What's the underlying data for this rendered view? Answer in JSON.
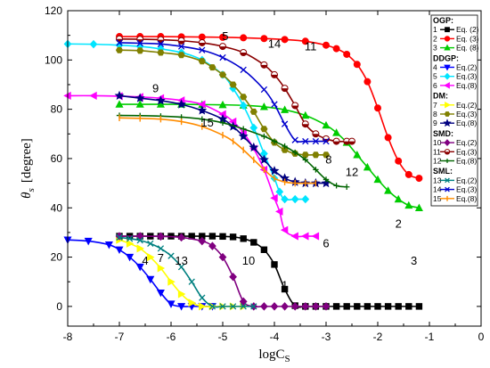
{
  "chart_data": {
    "type": "line",
    "xlabel": "logC",
    "xlabel_sub": "S",
    "ylabel": "θ",
    "ylabel_sub": "s",
    "ylabel_unit": "[degree]",
    "xlim": [
      -8,
      0
    ],
    "ylim": [
      -8,
      120
    ],
    "x_ticks": [
      -8,
      -7,
      -6,
      -5,
      -4,
      -3,
      -2,
      -1,
      0
    ],
    "y_ticks": [
      0,
      20,
      40,
      60,
      80,
      100,
      120
    ],
    "grid": false,
    "legend_position": "right",
    "legend_groups": [
      {
        "title": "OGP:",
        "entries": [
          {
            "num": "1",
            "label": "Eq. (2)",
            "color": "#000000",
            "marker": "square"
          },
          {
            "num": "2",
            "label": "Eq. (3)",
            "color": "#ff0000",
            "marker": "circle"
          },
          {
            "num": "3",
            "label": "Eq. (8)",
            "color": "#00cc00",
            "marker": "triangle-up"
          }
        ]
      },
      {
        "title": "DDGP:",
        "entries": [
          {
            "num": "4",
            "label": "Eq.(2)",
            "color": "#0000ff",
            "marker": "triangle-down"
          },
          {
            "num": "5",
            "label": "Eq.(3)",
            "color": "#00e5ff",
            "marker": "diamond"
          },
          {
            "num": "6",
            "label": "Eq.(8)",
            "color": "#ff00ff",
            "marker": "triangle-left"
          }
        ]
      },
      {
        "title": "DM:",
        "entries": [
          {
            "num": "7",
            "label": "Eq.(2)",
            "color": "#ffff00",
            "marker": "triangle-right"
          },
          {
            "num": "8",
            "label": "Eq.(3)",
            "color": "#808000",
            "marker": "hexagon"
          },
          {
            "num": "9",
            "label": "Eq.(8)",
            "color": "#000080",
            "marker": "star"
          }
        ]
      },
      {
        "title": "SMD:",
        "entries": [
          {
            "num": "10",
            "label": "Eq.(2)",
            "color": "#800080",
            "marker": "diamond"
          },
          {
            "num": "11",
            "label": "Eq.(3)",
            "color": "#8b0000",
            "marker": "circle-half"
          },
          {
            "num": "12",
            "label": "Eq.(8)",
            "color": "#006400",
            "marker": "plus"
          }
        ]
      },
      {
        "title": "SML:",
        "entries": [
          {
            "num": "13",
            "label": "Eq.(2)",
            "color": "#008080",
            "marker": "x"
          },
          {
            "num": "14",
            "label": "Eq.(3)",
            "color": "#0000cd",
            "marker": "x"
          },
          {
            "num": "15",
            "label": "Eq.(8)",
            "color": "#ff8c00",
            "marker": "bar"
          }
        ]
      }
    ],
    "series": [
      {
        "num": "1",
        "label_pos": [
          -3.8,
          7
        ],
        "color": "#000000",
        "marker": "square",
        "x": [
          -7.0,
          -6.8,
          -6.6,
          -6.4,
          -6.2,
          -6.0,
          -5.8,
          -5.6,
          -5.4,
          -5.2,
          -5.0,
          -4.8,
          -4.6,
          -4.4,
          -4.2,
          -4.0,
          -3.8,
          -3.6,
          -3.4,
          -3.2,
          -3.0,
          -2.8,
          -2.6,
          -2.4,
          -2.2,
          -2.0,
          -1.8,
          -1.6,
          -1.4,
          -1.2
        ],
        "y": [
          28.5,
          28.5,
          28.5,
          28.5,
          28.5,
          28.5,
          28.5,
          28.5,
          28.5,
          28.5,
          28.4,
          28.2,
          27.5,
          26,
          23,
          17,
          7,
          0.3,
          0,
          0,
          0,
          0,
          0,
          0,
          0,
          0,
          0,
          0,
          0,
          0
        ]
      },
      {
        "num": "2",
        "label_pos": [
          -1.6,
          32
        ],
        "color": "#ff0000",
        "marker": "circle",
        "x": [
          -7.0,
          -6.6,
          -6.2,
          -5.8,
          -5.4,
          -5.0,
          -4.6,
          -4.2,
          -3.8,
          -3.4,
          -3.0,
          -2.8,
          -2.6,
          -2.4,
          -2.2,
          -2.0,
          -1.8,
          -1.6,
          -1.4,
          -1.2
        ],
        "y": [
          109.5,
          109.5,
          109.5,
          109.4,
          109.3,
          109.2,
          109,
          108.7,
          108.3,
          107.6,
          106,
          104.6,
          102.3,
          98.2,
          91.2,
          80.5,
          68.5,
          59,
          53.5,
          52
        ]
      },
      {
        "num": "3",
        "label_pos": [
          -1.3,
          17
        ],
        "color": "#00cc00",
        "marker": "triangle-up",
        "x": [
          -7.0,
          -6.6,
          -6.2,
          -5.8,
          -5.4,
          -5.0,
          -4.6,
          -4.2,
          -3.8,
          -3.4,
          -3.0,
          -2.8,
          -2.6,
          -2.4,
          -2.2,
          -2.0,
          -1.8,
          -1.6,
          -1.4,
          -1.2
        ],
        "y": [
          82,
          82,
          82,
          82,
          81.9,
          81.8,
          81.6,
          81,
          79.8,
          77.5,
          73.5,
          70.5,
          66.5,
          61.5,
          56.5,
          51.5,
          47,
          43.5,
          41,
          40
        ]
      },
      {
        "num": "4",
        "label_pos": [
          -6.5,
          17
        ],
        "color": "#0000ff",
        "marker": "triangle-down",
        "x": [
          -8.0,
          -7.6,
          -7.2,
          -7.0,
          -6.8,
          -6.6,
          -6.4,
          -6.2,
          -6.0,
          -5.8,
          -5.6,
          -5.4,
          -5.2
        ],
        "y": [
          27,
          26.5,
          25,
          23,
          20,
          16,
          11,
          5.5,
          1,
          0,
          0,
          0,
          0
        ]
      },
      {
        "num": "5",
        "label_pos": [
          -4.95,
          108
        ],
        "color": "#00e5ff",
        "marker": "diamond",
        "x": [
          -8.0,
          -7.5,
          -7.0,
          -6.6,
          -6.2,
          -5.8,
          -5.4,
          -5.0,
          -4.8,
          -4.6,
          -4.4,
          -4.2,
          -4.0,
          -3.9,
          -3.8,
          -3.6,
          -3.4
        ],
        "y": [
          106.5,
          106.4,
          106,
          105.5,
          104.5,
          103,
          100,
          94,
          88.5,
          81.5,
          72.5,
          62,
          52,
          46.5,
          43.5,
          43.5,
          43.5
        ]
      },
      {
        "num": "6",
        "label_pos": [
          -3.0,
          24
        ],
        "color": "#ff00ff",
        "marker": "triangle-left",
        "x": [
          -8.0,
          -7.5,
          -7.0,
          -6.6,
          -6.2,
          -5.8,
          -5.4,
          -5.0,
          -4.8,
          -4.6,
          -4.4,
          -4.2,
          -4.0,
          -3.9,
          -3.8,
          -3.6,
          -3.4,
          -3.2
        ],
        "y": [
          85.5,
          85.5,
          85.3,
          85,
          84.5,
          83.6,
          82,
          78,
          75,
          70.5,
          64,
          55.5,
          44,
          38.5,
          31,
          28.5,
          28.5,
          28.5
        ]
      },
      {
        "num": "7",
        "label_pos": [
          -6.2,
          18
        ],
        "color": "#ffff00",
        "marker": "triangle-right",
        "x": [
          -7.0,
          -6.8,
          -6.6,
          -6.4,
          -6.2,
          -6.0,
          -5.8,
          -5.6,
          -5.4,
          -5.2,
          -5.0,
          -4.8,
          -4.6
        ],
        "y": [
          27,
          25.5,
          23.5,
          20,
          15.5,
          10,
          5,
          1.5,
          0,
          0,
          0,
          0,
          0
        ]
      },
      {
        "num": "8",
        "label_pos": [
          -2.95,
          58
        ],
        "color": "#808000",
        "marker": "hexagon",
        "x": [
          -7.0,
          -6.6,
          -6.2,
          -5.8,
          -5.4,
          -5.2,
          -5.0,
          -4.8,
          -4.6,
          -4.4,
          -4.2,
          -4.0,
          -3.8,
          -3.6,
          -3.4,
          -3.2,
          -3.0
        ],
        "y": [
          104,
          103.8,
          103,
          102,
          99.5,
          97,
          94,
          90,
          85,
          79,
          72,
          66.5,
          63.5,
          62,
          61.5,
          61.5,
          61.5
        ]
      },
      {
        "num": "9",
        "label_pos": [
          -6.3,
          87
        ],
        "color": "#000080",
        "marker": "star",
        "x": [
          -7.0,
          -6.6,
          -6.2,
          -5.8,
          -5.4,
          -5.0,
          -4.8,
          -4.6,
          -4.4,
          -4.2,
          -4.0,
          -3.8,
          -3.6,
          -3.4,
          -3.2,
          -3.0
        ],
        "y": [
          85.5,
          84.5,
          83.5,
          82,
          79.5,
          76,
          73,
          69,
          64.5,
          59.5,
          55,
          52,
          50.5,
          50,
          50,
          50
        ]
      },
      {
        "num": "10",
        "label_pos": [
          -4.5,
          17
        ],
        "color": "#800080",
        "marker": "diamond",
        "x": [
          -7.0,
          -6.6,
          -6.2,
          -5.8,
          -5.4,
          -5.2,
          -5.0,
          -4.8,
          -4.6,
          -4.4,
          -4.2,
          -4.0,
          -3.8,
          -3.6,
          -3.4,
          -3.2,
          -3.0
        ],
        "y": [
          28.5,
          28.5,
          28.4,
          28,
          26.5,
          24.5,
          20,
          12,
          2,
          0,
          0,
          0,
          0,
          0,
          0,
          0,
          0
        ]
      },
      {
        "num": "11",
        "label_pos": [
          -3.3,
          104
        ],
        "color": "#8b0000",
        "marker": "circle-half",
        "x": [
          -7.0,
          -6.6,
          -6.2,
          -5.8,
          -5.4,
          -5.0,
          -4.6,
          -4.2,
          -4.0,
          -3.8,
          -3.6,
          -3.4,
          -3.2,
          -3.0,
          -2.8,
          -2.6,
          -2.5
        ],
        "y": [
          108.5,
          108.4,
          108.2,
          107.8,
          107,
          105.5,
          103,
          98,
          94,
          88.5,
          81.5,
          74,
          70,
          68,
          67,
          67,
          67
        ]
      },
      {
        "num": "12",
        "label_pos": [
          -2.5,
          53
        ],
        "color": "#006400",
        "marker": "plus",
        "x": [
          -7.0,
          -6.6,
          -6.2,
          -5.8,
          -5.4,
          -5.0,
          -4.6,
          -4.2,
          -4.0,
          -3.8,
          -3.6,
          -3.4,
          -3.2,
          -3.0,
          -2.8,
          -2.6
        ],
        "y": [
          77.5,
          77.4,
          77.2,
          76.8,
          76,
          74.5,
          72,
          69,
          67,
          65,
          62.5,
          59.5,
          55.5,
          51.5,
          49,
          48.5
        ]
      },
      {
        "num": "13",
        "label_pos": [
          -5.8,
          17
        ],
        "color": "#008080",
        "marker": "x",
        "x": [
          -7.0,
          -6.8,
          -6.6,
          -6.4,
          -6.2,
          -6.0,
          -5.8,
          -5.6,
          -5.4,
          -5.2,
          -5.0,
          -4.8,
          -4.6,
          -4.4
        ],
        "y": [
          28,
          27.5,
          26.8,
          25.5,
          23.5,
          20.5,
          16,
          10,
          3.5,
          0,
          0,
          0,
          0,
          0
        ]
      },
      {
        "num": "14",
        "label_pos": [
          -4.0,
          105
        ],
        "color": "#0000cd",
        "marker": "x",
        "x": [
          -7.0,
          -6.6,
          -6.2,
          -5.8,
          -5.4,
          -5.0,
          -4.6,
          -4.2,
          -4.0,
          -3.8,
          -3.6,
          -3.4,
          -3.2,
          -3.0
        ],
        "y": [
          107,
          106.8,
          106.5,
          105.5,
          104,
          101,
          96,
          88,
          82,
          74,
          67.5,
          67,
          67,
          67
        ]
      },
      {
        "num": "15",
        "label_pos": [
          -5.3,
          73
        ],
        "color": "#ff8c00",
        "marker": "bar",
        "x": [
          -7.0,
          -6.6,
          -6.2,
          -5.8,
          -5.4,
          -5.0,
          -4.8,
          -4.6,
          -4.4,
          -4.2,
          -4.0,
          -3.8,
          -3.6,
          -3.4,
          -3.2
        ],
        "y": [
          76.5,
          76.3,
          76,
          75,
          73,
          69.5,
          67,
          63.5,
          59.5,
          55.5,
          52,
          50.5,
          50,
          50,
          50
        ]
      }
    ]
  }
}
